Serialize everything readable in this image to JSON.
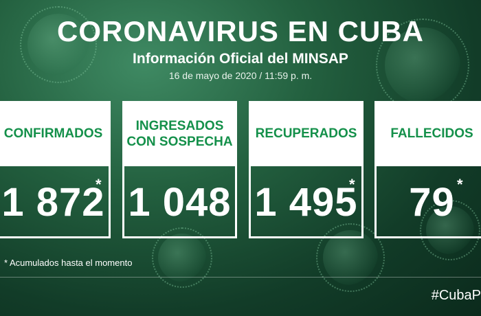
{
  "header": {
    "title": "CORONAVIRUS EN CUBA",
    "subtitle": "Información Oficial del MINSAP",
    "date": "16 de mayo de 2020 / 11:59 p. m."
  },
  "cards": [
    {
      "label": "CONFIRMADOS",
      "value": "1 872",
      "asterisk": "*"
    },
    {
      "label": "INGRESADOS CON SOSPECHA",
      "value": "1 048",
      "asterisk": ""
    },
    {
      "label": "RECUPERADOS",
      "value": "1 495",
      "asterisk": "*"
    },
    {
      "label": "FALLECIDOS",
      "value": "79",
      "asterisk": "*"
    }
  ],
  "footnote": "* Acumulados hasta el momento",
  "hashtag": "#CubaP",
  "colors": {
    "accent_green": "#14904a",
    "background": "#23603f"
  }
}
